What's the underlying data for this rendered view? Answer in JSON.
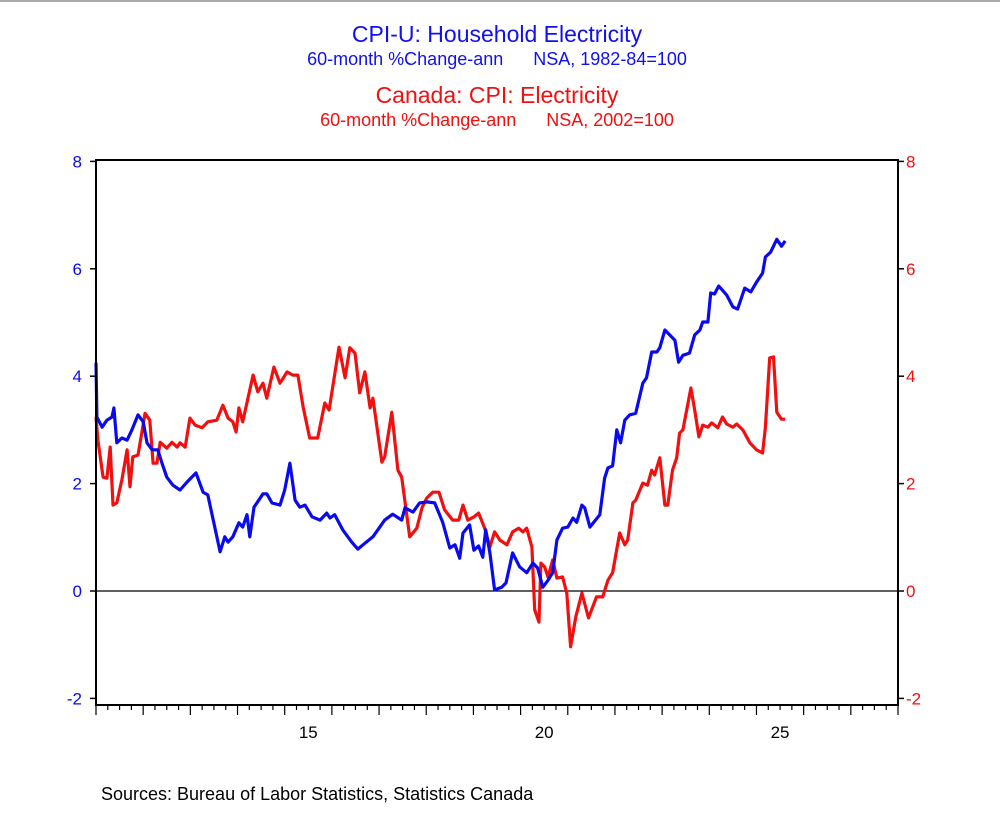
{
  "chart_data": {
    "type": "line",
    "titles": [
      {
        "text": "CPI-U: Household Electricity",
        "color": "#1010f0"
      },
      {
        "text": "60-month %Change-ann      NSA, 1982-84=100",
        "color": "#1010f0"
      },
      {
        "text": "Canada: CPI: Electricity",
        "color": "#f01010"
      },
      {
        "text": "60-month %Change-ann      NSA, 2002=100",
        "color": "#f01010"
      }
    ],
    "xlim": [
      2011,
      2028
    ],
    "ylim": [
      -2,
      8
    ],
    "x_tick_labels": [
      {
        "year": 2015,
        "label": "15"
      },
      {
        "year": 2020,
        "label": "20"
      },
      {
        "year": 2025,
        "label": "25"
      }
    ],
    "left_y_ticks": [
      "8",
      "6",
      "4",
      "2",
      "0",
      "-2"
    ],
    "right_y_ticks": [
      "8",
      "6",
      "4",
      "2",
      "0",
      "-2"
    ],
    "y_tick_values": [
      8,
      6,
      4,
      2,
      0,
      -2
    ],
    "source": "Sources:  Bureau of Labor Statistics, Statistics Canada",
    "series": [
      {
        "name": "CPI-U: Household Electricity",
        "color": "#0a0aee",
        "axis": "left",
        "points": [
          [
            2011.0,
            4.25
          ],
          [
            2011.02,
            3.24
          ],
          [
            2011.13,
            3.05
          ],
          [
            2011.23,
            3.18
          ],
          [
            2011.34,
            3.24
          ],
          [
            2011.38,
            3.41
          ],
          [
            2011.44,
            2.76
          ],
          [
            2011.55,
            2.85
          ],
          [
            2011.66,
            2.81
          ],
          [
            2011.76,
            3.0
          ],
          [
            2011.89,
            3.28
          ],
          [
            2012.0,
            3.15
          ],
          [
            2012.08,
            2.76
          ],
          [
            2012.19,
            2.63
          ],
          [
            2012.31,
            2.63
          ],
          [
            2012.4,
            2.38
          ],
          [
            2012.5,
            2.12
          ],
          [
            2012.63,
            1.97
          ],
          [
            2012.78,
            1.88
          ],
          [
            2012.93,
            2.03
          ],
          [
            2013.12,
            2.2
          ],
          [
            2013.27,
            1.84
          ],
          [
            2013.37,
            1.79
          ],
          [
            2013.63,
            0.73
          ],
          [
            2013.73,
            1.01
          ],
          [
            2013.8,
            0.91
          ],
          [
            2013.9,
            1.01
          ],
          [
            2014.03,
            1.27
          ],
          [
            2014.11,
            1.19
          ],
          [
            2014.2,
            1.42
          ],
          [
            2014.26,
            1.01
          ],
          [
            2014.35,
            1.56
          ],
          [
            2014.54,
            1.81
          ],
          [
            2014.62,
            1.81
          ],
          [
            2014.73,
            1.64
          ],
          [
            2014.9,
            1.6
          ],
          [
            2015.0,
            1.88
          ],
          [
            2015.11,
            2.38
          ],
          [
            2015.22,
            1.69
          ],
          [
            2015.32,
            1.56
          ],
          [
            2015.43,
            1.6
          ],
          [
            2015.58,
            1.38
          ],
          [
            2015.75,
            1.32
          ],
          [
            2015.89,
            1.45
          ],
          [
            2015.96,
            1.36
          ],
          [
            2016.06,
            1.42
          ],
          [
            2016.23,
            1.14
          ],
          [
            2016.42,
            0.91
          ],
          [
            2016.55,
            0.78
          ],
          [
            2016.66,
            0.86
          ],
          [
            2016.87,
            1.01
          ],
          [
            2017.12,
            1.32
          ],
          [
            2017.29,
            1.43
          ],
          [
            2017.48,
            1.32
          ],
          [
            2017.55,
            1.55
          ],
          [
            2017.72,
            1.47
          ],
          [
            2017.86,
            1.64
          ],
          [
            2018.01,
            1.66
          ],
          [
            2018.18,
            1.64
          ],
          [
            2018.35,
            1.28
          ],
          [
            2018.5,
            0.8
          ],
          [
            2018.61,
            0.86
          ],
          [
            2018.71,
            0.61
          ],
          [
            2018.78,
            1.08
          ],
          [
            2018.92,
            1.23
          ],
          [
            2019.01,
            0.76
          ],
          [
            2019.11,
            0.84
          ],
          [
            2019.2,
            0.63
          ],
          [
            2019.26,
            1.14
          ],
          [
            2019.35,
            0.71
          ],
          [
            2019.45,
            0.02
          ],
          [
            2019.6,
            0.07
          ],
          [
            2019.69,
            0.15
          ],
          [
            2019.83,
            0.71
          ],
          [
            2019.98,
            0.45
          ],
          [
            2020.13,
            0.34
          ],
          [
            2020.26,
            0.52
          ],
          [
            2020.36,
            0.43
          ],
          [
            2020.47,
            0.07
          ],
          [
            2020.58,
            0.2
          ],
          [
            2020.68,
            0.34
          ],
          [
            2020.77,
            0.95
          ],
          [
            2020.89,
            1.17
          ],
          [
            2021.0,
            1.19
          ],
          [
            2021.11,
            1.36
          ],
          [
            2021.19,
            1.28
          ],
          [
            2021.3,
            1.6
          ],
          [
            2021.36,
            1.55
          ],
          [
            2021.47,
            1.19
          ],
          [
            2021.68,
            1.42
          ],
          [
            2021.78,
            2.1
          ],
          [
            2021.85,
            2.29
          ],
          [
            2021.95,
            2.33
          ],
          [
            2022.04,
            3.0
          ],
          [
            2022.12,
            2.76
          ],
          [
            2022.21,
            3.18
          ],
          [
            2022.31,
            3.28
          ],
          [
            2022.44,
            3.31
          ],
          [
            2022.59,
            3.87
          ],
          [
            2022.67,
            3.97
          ],
          [
            2022.78,
            4.45
          ],
          [
            2022.89,
            4.45
          ],
          [
            2022.95,
            4.53
          ],
          [
            2023.06,
            4.86
          ],
          [
            2023.27,
            4.67
          ],
          [
            2023.35,
            4.26
          ],
          [
            2023.44,
            4.39
          ],
          [
            2023.58,
            4.43
          ],
          [
            2023.69,
            4.77
          ],
          [
            2023.8,
            4.86
          ],
          [
            2023.86,
            5.01
          ],
          [
            2023.97,
            5.01
          ],
          [
            2024.03,
            5.55
          ],
          [
            2024.11,
            5.53
          ],
          [
            2024.2,
            5.68
          ],
          [
            2024.37,
            5.51
          ],
          [
            2024.5,
            5.29
          ],
          [
            2024.6,
            5.25
          ],
          [
            2024.75,
            5.64
          ],
          [
            2024.88,
            5.57
          ],
          [
            2025.0,
            5.75
          ],
          [
            2025.13,
            5.92
          ],
          [
            2025.19,
            6.22
          ],
          [
            2025.3,
            6.31
          ],
          [
            2025.43,
            6.55
          ],
          [
            2025.53,
            6.42
          ],
          [
            2025.61,
            6.52
          ]
        ]
      },
      {
        "name": "Canada: CPI: Electricity",
        "color": "#f01010",
        "axis": "right",
        "points": [
          [
            2011.0,
            3.24
          ],
          [
            2011.04,
            2.81
          ],
          [
            2011.15,
            2.12
          ],
          [
            2011.23,
            2.1
          ],
          [
            2011.3,
            2.68
          ],
          [
            2011.36,
            1.6
          ],
          [
            2011.44,
            1.64
          ],
          [
            2011.55,
            2.07
          ],
          [
            2011.66,
            2.63
          ],
          [
            2011.72,
            1.94
          ],
          [
            2011.78,
            2.5
          ],
          [
            2011.89,
            2.53
          ],
          [
            2012.04,
            3.31
          ],
          [
            2012.14,
            3.18
          ],
          [
            2012.21,
            2.38
          ],
          [
            2012.29,
            2.38
          ],
          [
            2012.36,
            2.77
          ],
          [
            2012.5,
            2.66
          ],
          [
            2012.61,
            2.77
          ],
          [
            2012.72,
            2.68
          ],
          [
            2012.78,
            2.76
          ],
          [
            2012.89,
            2.68
          ],
          [
            2012.99,
            3.22
          ],
          [
            2013.1,
            3.09
          ],
          [
            2013.25,
            3.04
          ],
          [
            2013.37,
            3.15
          ],
          [
            2013.56,
            3.18
          ],
          [
            2013.69,
            3.46
          ],
          [
            2013.8,
            3.22
          ],
          [
            2013.9,
            3.15
          ],
          [
            2013.97,
            2.96
          ],
          [
            2014.03,
            3.41
          ],
          [
            2014.11,
            3.15
          ],
          [
            2014.33,
            4.02
          ],
          [
            2014.43,
            3.71
          ],
          [
            2014.54,
            3.87
          ],
          [
            2014.62,
            3.59
          ],
          [
            2014.77,
            4.17
          ],
          [
            2014.9,
            3.87
          ],
          [
            2015.05,
            4.08
          ],
          [
            2015.17,
            4.02
          ],
          [
            2015.28,
            4.02
          ],
          [
            2015.39,
            3.43
          ],
          [
            2015.53,
            2.85
          ],
          [
            2015.7,
            2.85
          ],
          [
            2015.85,
            3.5
          ],
          [
            2015.94,
            3.37
          ],
          [
            2016.15,
            4.54
          ],
          [
            2016.28,
            3.97
          ],
          [
            2016.38,
            4.53
          ],
          [
            2016.49,
            4.43
          ],
          [
            2016.59,
            3.69
          ],
          [
            2016.7,
            4.08
          ],
          [
            2016.81,
            3.41
          ],
          [
            2016.87,
            3.59
          ],
          [
            2017.06,
            2.4
          ],
          [
            2017.12,
            2.5
          ],
          [
            2017.27,
            3.33
          ],
          [
            2017.4,
            2.25
          ],
          [
            2017.48,
            2.12
          ],
          [
            2017.65,
            1.01
          ],
          [
            2017.8,
            1.17
          ],
          [
            2017.91,
            1.55
          ],
          [
            2018.01,
            1.73
          ],
          [
            2018.14,
            1.84
          ],
          [
            2018.27,
            1.84
          ],
          [
            2018.39,
            1.51
          ],
          [
            2018.56,
            1.32
          ],
          [
            2018.69,
            1.32
          ],
          [
            2018.78,
            1.6
          ],
          [
            2018.88,
            1.32
          ],
          [
            2019.01,
            1.38
          ],
          [
            2019.11,
            1.45
          ],
          [
            2019.24,
            1.17
          ],
          [
            2019.35,
            0.82
          ],
          [
            2019.45,
            1.1
          ],
          [
            2019.56,
            0.95
          ],
          [
            2019.71,
            0.86
          ],
          [
            2019.83,
            1.1
          ],
          [
            2019.96,
            1.17
          ],
          [
            2020.05,
            1.1
          ],
          [
            2020.13,
            1.17
          ],
          [
            2020.24,
            0.82
          ],
          [
            2020.3,
            -0.35
          ],
          [
            2020.39,
            -0.58
          ],
          [
            2020.43,
            0.52
          ],
          [
            2020.51,
            0.45
          ],
          [
            2020.58,
            0.26
          ],
          [
            2020.68,
            0.58
          ],
          [
            2020.77,
            0.24
          ],
          [
            2020.89,
            0.26
          ],
          [
            2020.98,
            -0.04
          ],
          [
            2021.06,
            -1.04
          ],
          [
            2021.17,
            -0.48
          ],
          [
            2021.3,
            -0.04
          ],
          [
            2021.44,
            -0.5
          ],
          [
            2021.61,
            -0.11
          ],
          [
            2021.74,
            -0.11
          ],
          [
            2021.85,
            0.2
          ],
          [
            2021.95,
            0.34
          ],
          [
            2022.1,
            1.08
          ],
          [
            2022.21,
            0.86
          ],
          [
            2022.27,
            0.95
          ],
          [
            2022.38,
            1.64
          ],
          [
            2022.44,
            1.69
          ],
          [
            2022.59,
            2.01
          ],
          [
            2022.69,
            1.97
          ],
          [
            2022.78,
            2.25
          ],
          [
            2022.84,
            2.16
          ],
          [
            2022.95,
            2.48
          ],
          [
            2023.06,
            1.6
          ],
          [
            2023.12,
            1.6
          ],
          [
            2023.22,
            2.25
          ],
          [
            2023.31,
            2.48
          ],
          [
            2023.37,
            2.94
          ],
          [
            2023.44,
            3.0
          ],
          [
            2023.61,
            3.78
          ],
          [
            2023.69,
            3.37
          ],
          [
            2023.78,
            2.87
          ],
          [
            2023.86,
            3.09
          ],
          [
            2023.97,
            3.05
          ],
          [
            2024.05,
            3.13
          ],
          [
            2024.18,
            3.04
          ],
          [
            2024.28,
            3.24
          ],
          [
            2024.37,
            3.11
          ],
          [
            2024.5,
            3.05
          ],
          [
            2024.58,
            3.11
          ],
          [
            2024.71,
            3.0
          ],
          [
            2024.86,
            2.76
          ],
          [
            2025.0,
            2.63
          ],
          [
            2025.13,
            2.57
          ],
          [
            2025.19,
            3.05
          ],
          [
            2025.28,
            4.34
          ],
          [
            2025.36,
            4.36
          ],
          [
            2025.43,
            3.33
          ],
          [
            2025.53,
            3.2
          ],
          [
            2025.61,
            3.2
          ]
        ]
      }
    ],
    "grid": false,
    "zero_line": true,
    "legend": "none"
  }
}
